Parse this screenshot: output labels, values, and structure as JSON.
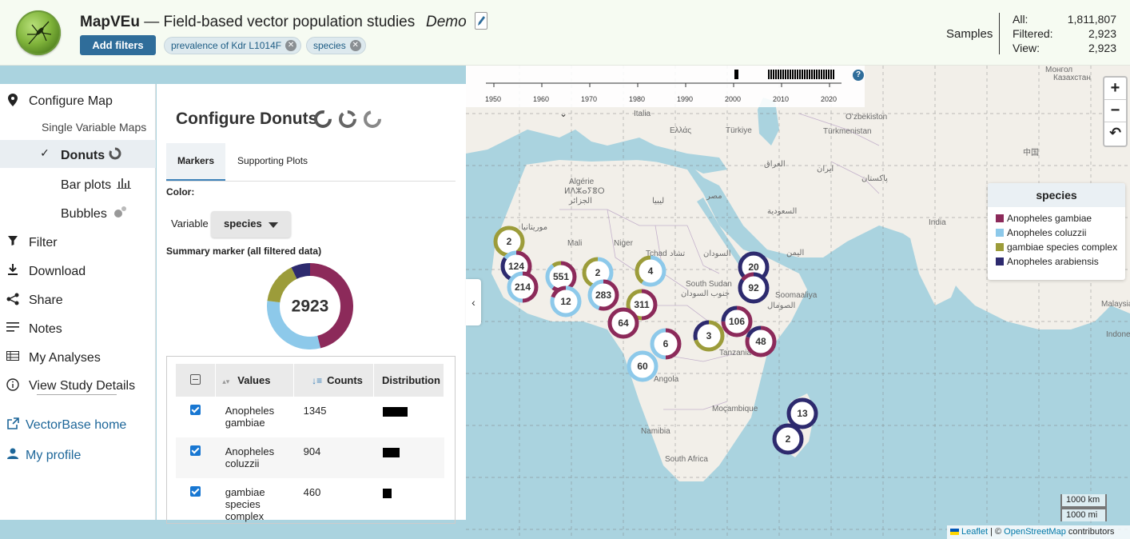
{
  "header": {
    "brand": "MapVEu",
    "title_rest": " — Field-based vector population studies",
    "demo": "Demo",
    "add_filters": "Add filters",
    "chips": [
      "prevalence of Kdr L1014F",
      "species"
    ],
    "samples_label": "Samples",
    "samples": [
      {
        "k": "All:",
        "v": "1,811,807"
      },
      {
        "k": "Filtered:",
        "v": "2,923"
      },
      {
        "k": "View:",
        "v": "2,923"
      }
    ]
  },
  "nav": {
    "configure_map": "Configure Map",
    "single_variable_maps": "Single Variable Maps",
    "donuts": "Donuts",
    "bar_plots": "Bar plots",
    "bubbles": "Bubbles",
    "filter": "Filter",
    "download": "Download",
    "share": "Share",
    "notes": "Notes",
    "my_analyses": "My Analyses",
    "view_study_details": "View Study Details",
    "vectorbase_home": "VectorBase home",
    "my_profile": "My profile"
  },
  "panel": {
    "title": "Configure Donuts",
    "tabs": [
      "Markers",
      "Supporting Plots"
    ],
    "color_label": "Color:",
    "variable_label": "Variable",
    "variable_value": "species",
    "summary_label": "Summary marker (all filtered data)",
    "summary_total": "2923",
    "table": {
      "headers": [
        "Values",
        "Counts",
        "Distribution"
      ],
      "rows": [
        {
          "value": "Anopheles gambiae",
          "count": "1345",
          "dist": 0.46
        },
        {
          "value": "Anopheles coluzzii",
          "count": "904",
          "dist": 0.31
        },
        {
          "value": "gambiae species complex",
          "count": "460",
          "dist": 0.16
        }
      ]
    }
  },
  "legend": {
    "title": "species",
    "items": [
      {
        "label": "Anopheles gambiae",
        "color": "#8c2a5a"
      },
      {
        "label": "Anopheles coluzzii",
        "color": "#8dc9ea"
      },
      {
        "label": "gambiae species complex",
        "color": "#9c9c3a"
      },
      {
        "label": "Anopheles arabiensis",
        "color": "#2d2a6e"
      }
    ]
  },
  "timeline": {
    "years": [
      "1950",
      "1960",
      "1970",
      "1980",
      "1990",
      "2000",
      "2010",
      "2020"
    ]
  },
  "map_labels": [
    "Italia",
    "Ελλάς",
    "Türkiye",
    "Oʻzbekiston",
    "Türkmenistan",
    "Algérie",
    "ⵍⴷⵣⴰⵢⴻⵔ",
    "الجزائر",
    "ليبيا",
    "مصر",
    "العراق",
    "ایران",
    "پاکستان",
    "السعودية",
    "موريتانيا",
    "Mali",
    "Niger",
    "Tchad",
    "تشاد",
    "السودان",
    "South Sudan",
    "جنوب السودان",
    "اليمن",
    "Soomaaliya",
    "الصومال",
    "India",
    "Angola",
    "Tanzania",
    "Moçambique",
    "Namibia",
    "South Africa",
    "Монгол",
    "中国",
    "Казахстан",
    "Malaysia",
    "Indonesia"
  ],
  "markers": [
    {
      "label": "2",
      "segments": [
        [
          0.4,
          "#9c9c3a"
        ],
        [
          0.6,
          "#9c9c3a"
        ]
      ]
    },
    {
      "label": "124",
      "segments": [
        [
          0.55,
          "#8c2a5a"
        ],
        [
          0.3,
          "#2d2a6e"
        ],
        [
          0.15,
          "#8dc9ea"
        ]
      ]
    },
    {
      "label": "214",
      "segments": [
        [
          0.5,
          "#8c2a5a"
        ],
        [
          0.5,
          "#8dc9ea"
        ]
      ]
    },
    {
      "label": "551",
      "segments": [
        [
          0.6,
          "#8c2a5a"
        ],
        [
          0.3,
          "#8dc9ea"
        ],
        [
          0.1,
          "#9c9c3a"
        ]
      ]
    },
    {
      "label": "12",
      "segments": [
        [
          0.8,
          "#8dc9ea"
        ],
        [
          0.2,
          "#8c2a5a"
        ]
      ]
    },
    {
      "label": "2",
      "segments": [
        [
          0.5,
          "#8dc9ea"
        ],
        [
          0.5,
          "#9c9c3a"
        ]
      ]
    },
    {
      "label": "283",
      "segments": [
        [
          0.55,
          "#8c2a5a"
        ],
        [
          0.45,
          "#8dc9ea"
        ]
      ]
    },
    {
      "label": "4",
      "segments": [
        [
          0.6,
          "#8dc9ea"
        ],
        [
          0.4,
          "#9c9c3a"
        ]
      ]
    },
    {
      "label": "311",
      "segments": [
        [
          0.5,
          "#8c2a5a"
        ],
        [
          0.5,
          "#9c9c3a"
        ]
      ]
    },
    {
      "label": "64",
      "segments": [
        [
          1.0,
          "#8c2a5a"
        ]
      ]
    },
    {
      "label": "20",
      "segments": [
        [
          1.0,
          "#2d2a6e"
        ]
      ]
    },
    {
      "label": "92",
      "segments": [
        [
          0.85,
          "#2d2a6e"
        ],
        [
          0.15,
          "#8c2a5a"
        ]
      ]
    },
    {
      "label": "106",
      "segments": [
        [
          0.75,
          "#8c2a5a"
        ],
        [
          0.25,
          "#2d2a6e"
        ]
      ]
    },
    {
      "label": "3",
      "segments": [
        [
          0.7,
          "#9c9c3a"
        ],
        [
          0.3,
          "#2d2a6e"
        ]
      ]
    },
    {
      "label": "48",
      "segments": [
        [
          0.8,
          "#8c2a5a"
        ],
        [
          0.2,
          "#2d2a6e"
        ]
      ]
    },
    {
      "label": "6",
      "segments": [
        [
          0.5,
          "#8c2a5a"
        ],
        [
          0.5,
          "#8dc9ea"
        ]
      ]
    },
    {
      "label": "60",
      "segments": [
        [
          1.0,
          "#8dc9ea"
        ]
      ]
    },
    {
      "label": "13",
      "segments": [
        [
          1.0,
          "#2d2a6e"
        ]
      ]
    },
    {
      "label": "2",
      "segments": [
        [
          1.0,
          "#2d2a6e"
        ]
      ]
    }
  ],
  "scale": [
    "1000 km",
    "1000 mi"
  ],
  "attribution": {
    "leaflet": "Leaflet",
    "sep": " | © ",
    "osm": "OpenStreetMap",
    "rest": " contributors"
  }
}
